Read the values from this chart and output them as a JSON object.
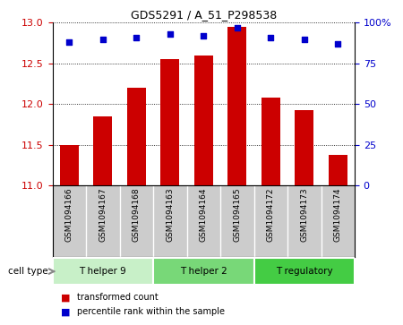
{
  "title": "GDS5291 / A_51_P298538",
  "samples": [
    "GSM1094166",
    "GSM1094167",
    "GSM1094168",
    "GSM1094163",
    "GSM1094164",
    "GSM1094165",
    "GSM1094172",
    "GSM1094173",
    "GSM1094174"
  ],
  "transformed_counts": [
    11.5,
    11.85,
    12.2,
    12.55,
    12.6,
    12.95,
    12.08,
    11.92,
    11.37
  ],
  "percentile_ranks": [
    88,
    90,
    91,
    93,
    92,
    97,
    91,
    90,
    87
  ],
  "cell_types": [
    {
      "label": "T helper 9",
      "start": 0,
      "end": 3,
      "color": "#c8f0c8"
    },
    {
      "label": "T helper 2",
      "start": 3,
      "end": 6,
      "color": "#78d878"
    },
    {
      "label": "T regulatory",
      "start": 6,
      "end": 9,
      "color": "#44cc44"
    }
  ],
  "ylim_left": [
    11,
    13
  ],
  "ylim_right": [
    0,
    100
  ],
  "yticks_left": [
    11,
    11.5,
    12,
    12.5,
    13
  ],
  "yticks_right": [
    0,
    25,
    50,
    75,
    100
  ],
  "ytick_right_labels": [
    "0",
    "25",
    "50",
    "75",
    "100%"
  ],
  "bar_color": "#cc0000",
  "dot_color": "#0000cc",
  "bar_width": 0.55,
  "grid_color": "#000000",
  "background_color": "#ffffff",
  "cell_type_label": "cell type",
  "legend_bar_label": "transformed count",
  "legend_dot_label": "percentile rank within the sample",
  "label_area_color": "#cccccc",
  "label_sep_color": "#ffffff"
}
